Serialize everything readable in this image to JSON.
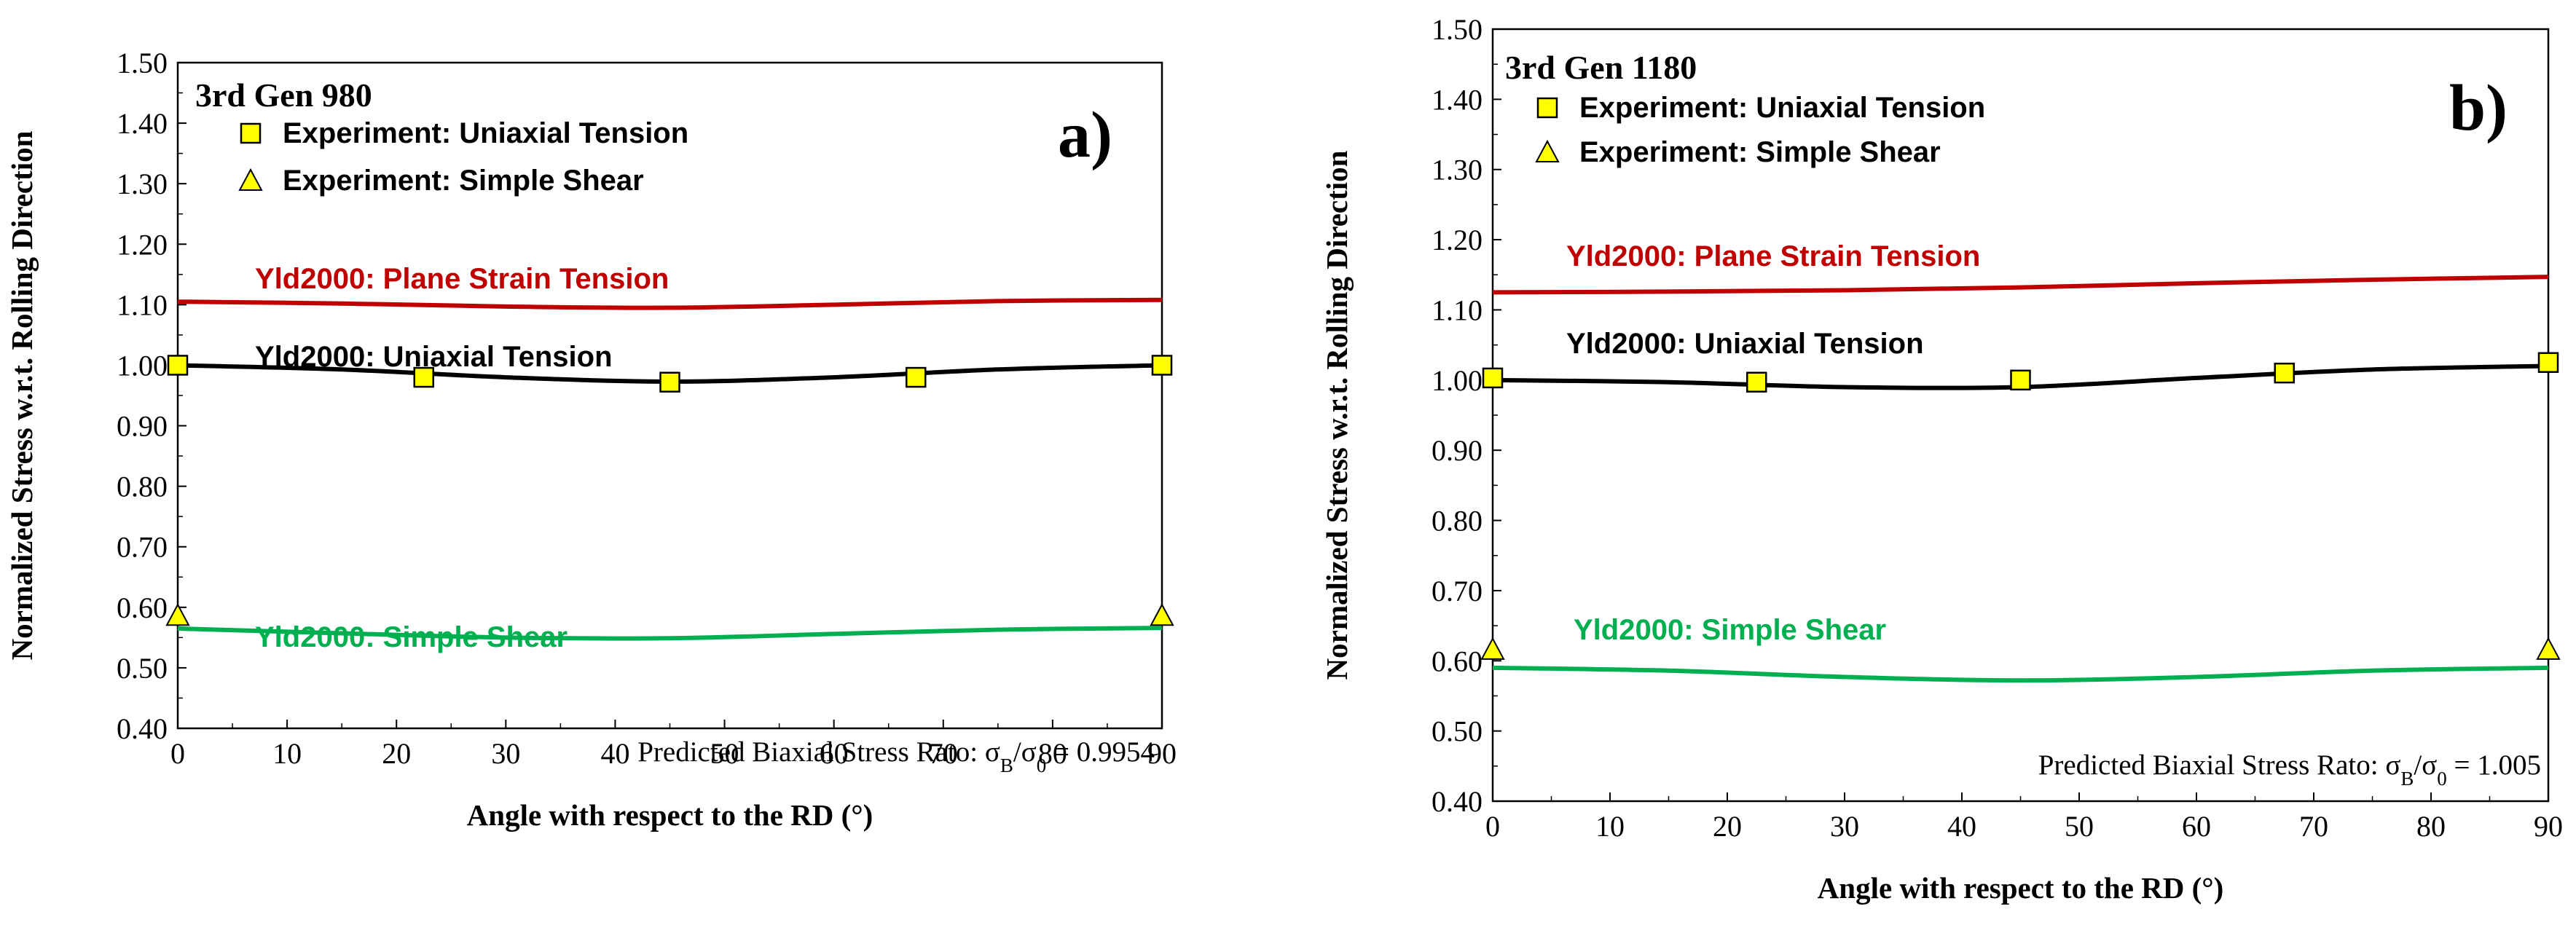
{
  "colors": {
    "plane_strain": "#c00000",
    "uniaxial": "#000000",
    "shear": "#00b050",
    "marker_fill": "#ffff00"
  },
  "chart_data": [
    {
      "type": "line",
      "panel_label": "a)",
      "title": "3rd Gen 980",
      "xlabel": "Angle with respect to the RD (°)",
      "ylabel": "Normalized Stress w.r.t. Rolling Direction",
      "xlim": [
        0,
        90
      ],
      "ylim": [
        0.4,
        1.5
      ],
      "x_ticks": [
        "0",
        "10",
        "20",
        "30",
        "40",
        "50",
        "60",
        "70",
        "80",
        "90"
      ],
      "y_ticks": [
        "0.40",
        "0.50",
        "0.60",
        "0.70",
        "0.80",
        "0.90",
        "1.00",
        "1.10",
        "1.20",
        "1.30",
        "1.40",
        "1.50"
      ],
      "legend": [
        "Experiment: Uniaxial Tension",
        "Experiment: Simple Shear"
      ],
      "series": [
        {
          "name": "Yld2000: Plane Strain Tension",
          "kind": "line",
          "color": "#c00000",
          "x": [
            0,
            15,
            30,
            45,
            60,
            75,
            90
          ],
          "y": [
            1.105,
            1.102,
            1.097,
            1.095,
            1.1,
            1.106,
            1.108
          ]
        },
        {
          "name": "Yld2000: Uniaxial Tension",
          "kind": "line",
          "color": "#000000",
          "x": [
            0,
            15,
            30,
            45,
            60,
            75,
            90
          ],
          "y": [
            1.0,
            0.993,
            0.98,
            0.973,
            0.98,
            0.993,
            1.0
          ]
        },
        {
          "name": "Yld2000: Simple Shear",
          "kind": "line",
          "color": "#00b050",
          "x": [
            0,
            15,
            30,
            45,
            60,
            75,
            90
          ],
          "y": [
            0.565,
            0.557,
            0.55,
            0.549,
            0.556,
            0.563,
            0.566
          ]
        },
        {
          "name": "Experiment: Uniaxial Tension",
          "kind": "square",
          "x": [
            0,
            22.5,
            45,
            67.5,
            90
          ],
          "y": [
            1.0,
            0.98,
            0.972,
            0.98,
            1.0
          ]
        },
        {
          "name": "Experiment: Simple Shear",
          "kind": "triangle",
          "x": [
            0,
            90
          ],
          "y": [
            0.585,
            0.585
          ]
        }
      ],
      "series_labels": [
        "Yld2000: Plane Strain Tension",
        "Yld2000: Uniaxial Tension",
        "Yld2000: Simple Shear"
      ],
      "annotation": {
        "prefix": "Predicted Biaxial Stress Rato: ",
        "sigma": "σ",
        "sub_b": "B",
        "slash": "/",
        "sub_0": "0",
        "value": "= 0.9954"
      }
    },
    {
      "type": "line",
      "panel_label": "b)",
      "title": "3rd Gen 1180",
      "xlabel": "Angle with respect to the RD (°)",
      "ylabel": "Normalized Stress w.r.t. Rolling Direction",
      "xlim": [
        0,
        90
      ],
      "ylim": [
        0.4,
        1.5
      ],
      "x_ticks": [
        "0",
        "10",
        "20",
        "30",
        "40",
        "50",
        "60",
        "70",
        "80",
        "90"
      ],
      "y_ticks": [
        "0.40",
        "0.50",
        "0.60",
        "0.70",
        "0.80",
        "0.90",
        "1.00",
        "1.10",
        "1.20",
        "1.30",
        "1.40",
        "1.50"
      ],
      "legend": [
        "Experiment: Uniaxial Tension",
        "Experiment: Simple Shear"
      ],
      "series": [
        {
          "name": "Yld2000: Plane Strain Tension",
          "kind": "line",
          "color": "#c00000",
          "x": [
            0,
            15,
            30,
            45,
            60,
            75,
            90
          ],
          "y": [
            1.125,
            1.126,
            1.128,
            1.132,
            1.138,
            1.143,
            1.147
          ]
        },
        {
          "name": "Yld2000: Uniaxial Tension",
          "kind": "line",
          "color": "#000000",
          "x": [
            0,
            15,
            30,
            45,
            60,
            75,
            90
          ],
          "y": [
            1.0,
            0.997,
            0.99,
            0.99,
            1.003,
            1.015,
            1.02
          ]
        },
        {
          "name": "Yld2000: Simple Shear",
          "kind": "line",
          "color": "#00b050",
          "x": [
            0,
            15,
            30,
            45,
            60,
            75,
            90
          ],
          "y": [
            0.59,
            0.586,
            0.577,
            0.572,
            0.577,
            0.586,
            0.59
          ]
        },
        {
          "name": "Experiment: Uniaxial Tension",
          "kind": "square",
          "x": [
            0,
            22.5,
            45,
            67.5,
            90
          ],
          "y": [
            1.003,
            0.997,
            1.0,
            1.01,
            1.025
          ]
        },
        {
          "name": "Experiment: Simple Shear",
          "kind": "triangle",
          "x": [
            0,
            90
          ],
          "y": [
            0.615,
            0.615
          ]
        }
      ],
      "series_labels": [
        "Yld2000: Plane Strain Tension",
        "Yld2000: Uniaxial Tension",
        "Yld2000: Simple Shear"
      ],
      "annotation": {
        "prefix": "Predicted Biaxial Stress Rato: ",
        "sigma": "σ",
        "sub_b": "B",
        "slash": "/",
        "sub_0": "0",
        "value": "= 1.005"
      }
    }
  ]
}
